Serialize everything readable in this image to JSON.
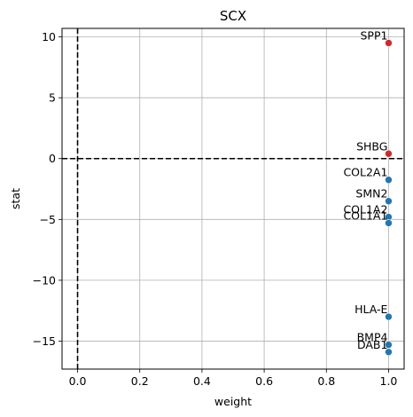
{
  "chart_data": {
    "type": "scatter",
    "title": "SCX",
    "xlabel": "weight",
    "ylabel": "stat",
    "xlim": [
      -0.05,
      1.05
    ],
    "ylim": [
      -17.3,
      10.7
    ],
    "xticks": [
      0.0,
      0.2,
      0.4,
      0.6,
      0.8,
      1.0
    ],
    "xtick_labels": [
      "0.0",
      "0.2",
      "0.4",
      "0.6",
      "0.8",
      "1.0"
    ],
    "yticks": [
      -15,
      -10,
      -5,
      0,
      5,
      10
    ],
    "ytick_labels": [
      "−15",
      "−10",
      "−5",
      "0",
      "5",
      "10"
    ],
    "grid": true,
    "reference_lines": {
      "x": 0,
      "y": 0,
      "style": "dashed"
    },
    "colors": {
      "positive": "#d62728",
      "negative": "#1f77b4"
    },
    "points": [
      {
        "label": "SPP1",
        "x": 1.0,
        "y": 9.5,
        "color": "#d62728"
      },
      {
        "label": "SHBG",
        "x": 1.0,
        "y": 0.4,
        "color": "#d62728"
      },
      {
        "label": "COL2A1",
        "x": 1.0,
        "y": -1.75,
        "color": "#1f77b4"
      },
      {
        "label": "SMN2",
        "x": 1.0,
        "y": -3.5,
        "color": "#1f77b4"
      },
      {
        "label": "COL1A2",
        "x": 1.0,
        "y": -4.8,
        "color": "#1f77b4"
      },
      {
        "label": "COL1A1",
        "x": 1.0,
        "y": -5.3,
        "color": "#1f77b4"
      },
      {
        "label": "HLA-E",
        "x": 1.0,
        "y": -13.0,
        "color": "#1f77b4"
      },
      {
        "label": "BMP4",
        "x": 1.0,
        "y": -15.3,
        "color": "#1f77b4"
      },
      {
        "label": "DAB1",
        "x": 1.0,
        "y": -15.9,
        "color": "#1f77b4"
      }
    ]
  }
}
